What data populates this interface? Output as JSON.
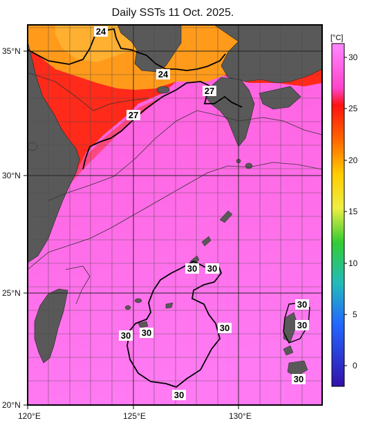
{
  "title": "Daily SSTs 11 Oct. 2025.",
  "x_tick_labels": [
    "120°E",
    "125°E",
    "130°E"
  ],
  "y_tick_labels": [
    "35°N",
    "30°N",
    "25°N",
    "20°N"
  ],
  "colorbar": {
    "unit_label": "[°C]",
    "tick_labels": [
      "30",
      "25",
      "20",
      "15",
      "10",
      "5",
      "0"
    ],
    "colors": [
      "#ff66ff",
      "#ff1111",
      "#ff8800",
      "#ffdd00",
      "#22cc22",
      "#22aaff",
      "#3311bb"
    ]
  },
  "contour_labels": {
    "c24a": "24",
    "c24b": "24",
    "c27a": "27",
    "c27b": "27",
    "c30a": "30",
    "c30b": "30",
    "c30c": "30",
    "c30d": "30",
    "c30e": "30",
    "c30f": "30",
    "c30g": "30",
    "c30h": "30",
    "c30i": "30"
  },
  "colors": {
    "land": "#595959",
    "warm_sea": "#ff66f4",
    "hot_red": "#ff2a1a",
    "orange": "#ff9a1a"
  }
}
